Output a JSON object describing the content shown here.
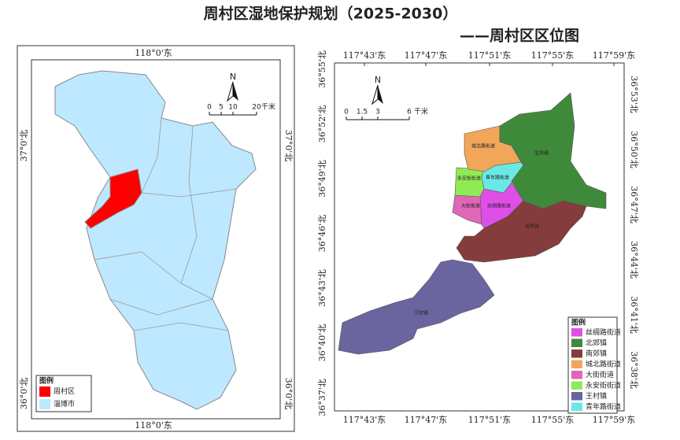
{
  "title": "周村区湿地保护规划（2025-2030）",
  "subtitle": "——周村区区位图",
  "left_map": {
    "top_label": "118°0'东",
    "bottom_label": "118°0'东",
    "left_labels": [
      "37°0'北",
      "36°0'北"
    ],
    "right_labels": [
      "37°0'北",
      "36°0'北"
    ],
    "north": "N",
    "scale": {
      "ticks": [
        "0",
        "5",
        "10",
        "20"
      ],
      "unit": "千米"
    },
    "legend": {
      "title": "图例",
      "items": [
        {
          "name": "周村区",
          "color": "#ff0000"
        },
        {
          "name": "淄博市",
          "color": "#bee8ff"
        }
      ]
    }
  },
  "right_map": {
    "top_labels": [
      "117°43'东",
      "117°47'东",
      "117°51'东",
      "117°55'东",
      "117°59'东"
    ],
    "bottom_labels": [
      "117°43'东",
      "117°47'东",
      "117°51'东",
      "117°55'东",
      "117°59'东"
    ],
    "left_labels": [
      "36°55'北",
      "36°52'北",
      "36°49'北",
      "36°46'北",
      "36°43'北",
      "36°40'北",
      "36°37'北"
    ],
    "right_labels": [
      "36°53'北",
      "36°50'北",
      "36°47'北",
      "36°44'北",
      "36°41'北",
      "36°38'北"
    ],
    "north": "N",
    "scale": {
      "ticks": [
        "0",
        "1.5",
        "3",
        "6"
      ],
      "unit": "千米"
    },
    "regions": [
      "北郊镇",
      "城北路街道",
      "青年路街道",
      "永安街街道",
      "大街街道",
      "丝绸路街道",
      "南郊镇",
      "王村镇"
    ],
    "legend": {
      "title": "图例",
      "items": [
        {
          "name": "丝绸路街道",
          "color": "#e04ee8"
        },
        {
          "name": "北郊镇",
          "color": "#3f8a3a"
        },
        {
          "name": "南郊镇",
          "color": "#843c3c"
        },
        {
          "name": "城北路街道",
          "color": "#f2a65a"
        },
        {
          "name": "大街街道",
          "color": "#e066b8"
        },
        {
          "name": "永安街街道",
          "color": "#8fea55"
        },
        {
          "name": "王村镇",
          "color": "#6a659e"
        },
        {
          "name": "青年路街道",
          "color": "#6ae8e6"
        }
      ]
    }
  }
}
